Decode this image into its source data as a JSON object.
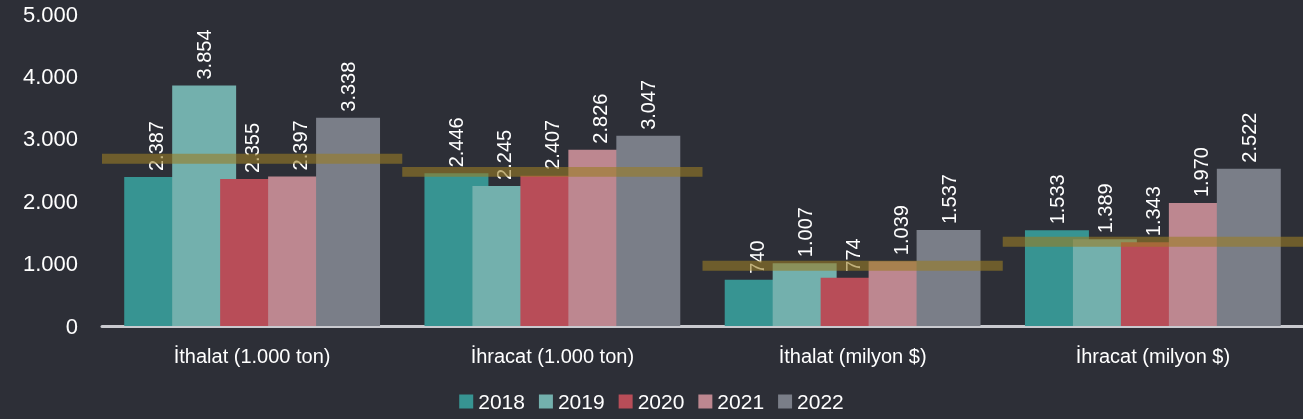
{
  "chart_data": {
    "type": "bar",
    "categories": [
      "İthalat (1.000 ton)",
      "İhracat (1.000 ton)",
      "İthalat (milyon $)",
      "İhracat (milyon $)"
    ],
    "series": [
      {
        "name": "2018",
        "color": "#379492",
        "values": [
          2387,
          2446,
          740,
          1533
        ],
        "value_labels": [
          "2.387",
          "2.446",
          "740",
          "1.533"
        ]
      },
      {
        "name": "2019",
        "color": "#73b0ad",
        "values": [
          3854,
          2245,
          1007,
          1389
        ],
        "value_labels": [
          "3.854",
          "2.245",
          "1.007",
          "1.389"
        ]
      },
      {
        "name": "2020",
        "color": "#b84d58",
        "values": [
          2355,
          2407,
          774,
          1343
        ],
        "value_labels": [
          "2.355",
          "2.407",
          "774",
          "1.343"
        ]
      },
      {
        "name": "2021",
        "color": "#bd8790",
        "values": [
          2397,
          2826,
          1039,
          1970
        ],
        "value_labels": [
          "2.397",
          "2.826",
          "1.039",
          "1.970"
        ]
      },
      {
        "name": "2022",
        "color": "#7a7e88",
        "values": [
          3338,
          3047,
          1537,
          2522
        ],
        "value_labels": [
          "3.338",
          "3.047",
          "1.537",
          "2.522"
        ]
      },
      {
        "type": "bar",
        "color": "#9a7d25",
        "base": [
          2600,
          2390,
          885,
          1270
        ],
        "values": [
          160,
          160,
          160,
          160
        ]
      }
    ],
    "ylim": [
      0,
      5000
    ],
    "yticks": [
      0,
      {
        "value": 1000,
        "label": "1.000"
      },
      {
        "value": 2000,
        "label": "2.000"
      },
      {
        "value": 3000,
        "label": "3.000"
      },
      {
        "value": 4000,
        "label": "4.000"
      },
      {
        "value": 5000,
        "label": "5.000"
      }
    ],
    "legend": "bottom",
    "grid": false
  }
}
